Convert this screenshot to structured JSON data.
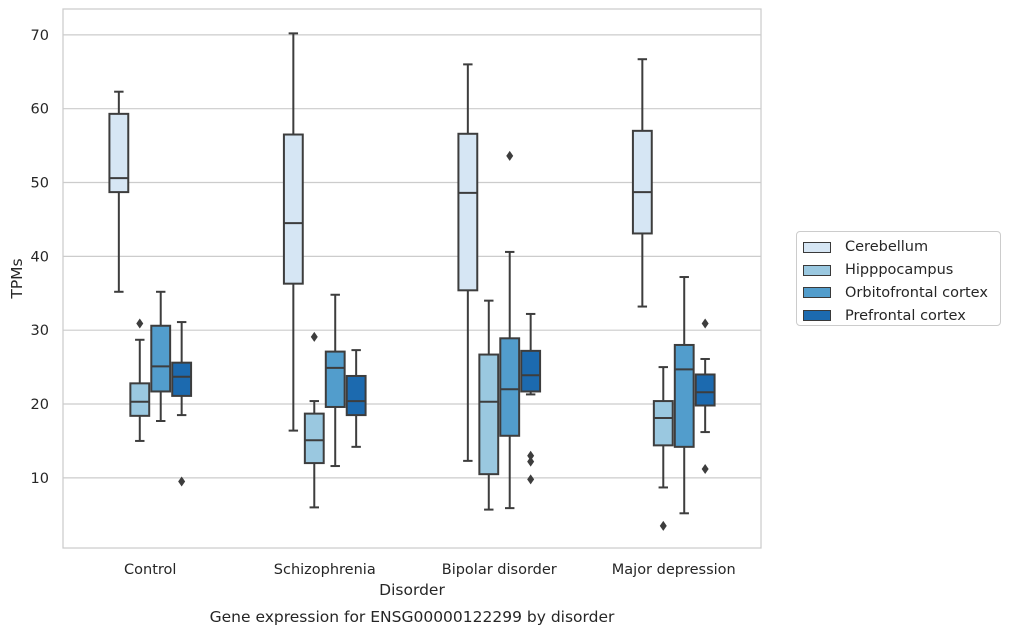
{
  "chart_data": {
    "type": "box",
    "title": "",
    "caption": "Gene expression for ENSG00000122299 by disorder",
    "xlabel": "Disorder",
    "ylabel": "TPMs",
    "ylim": [
      0.5,
      73.5
    ],
    "yticks": [
      10,
      20,
      30,
      40,
      50,
      60,
      70
    ],
    "grid": "horizontal",
    "legend_position": "right",
    "categories": [
      "Control",
      "Schizophrenia",
      "Bipolar disorder",
      "Major depression"
    ],
    "series": [
      {
        "name": "Cerebellum",
        "color": "#d6e6f4",
        "boxes": [
          {
            "whislo": 35.2,
            "q1": 48.7,
            "med": 50.6,
            "q3": 59.3,
            "whishi": 62.3,
            "fliers": []
          },
          {
            "whislo": 16.4,
            "q1": 36.3,
            "med": 44.5,
            "q3": 56.5,
            "whishi": 70.2,
            "fliers": []
          },
          {
            "whislo": 12.3,
            "q1": 35.4,
            "med": 48.6,
            "q3": 56.6,
            "whishi": 66.0,
            "fliers": []
          },
          {
            "whislo": 33.2,
            "q1": 43.1,
            "med": 48.7,
            "q3": 57.0,
            "whishi": 66.7,
            "fliers": []
          }
        ]
      },
      {
        "name": "Hipppocampus",
        "color": "#9ac8e0",
        "boxes": [
          {
            "whislo": 15.0,
            "q1": 18.4,
            "med": 20.3,
            "q3": 22.8,
            "whishi": 28.7,
            "fliers": [
              30.9
            ]
          },
          {
            "whislo": 6.0,
            "q1": 12.0,
            "med": 15.1,
            "q3": 18.7,
            "whishi": 20.4,
            "fliers": [
              29.1
            ]
          },
          {
            "whislo": 5.7,
            "q1": 10.5,
            "med": 20.3,
            "q3": 26.7,
            "whishi": 34.0,
            "fliers": []
          },
          {
            "whislo": 8.7,
            "q1": 14.4,
            "med": 18.1,
            "q3": 20.4,
            "whishi": 25.0,
            "fliers": [
              3.5
            ]
          }
        ]
      },
      {
        "name": "Orbitofrontal cortex",
        "color": "#529dcc",
        "boxes": [
          {
            "whislo": 17.7,
            "q1": 21.7,
            "med": 25.1,
            "q3": 30.6,
            "whishi": 35.2,
            "fliers": []
          },
          {
            "whislo": 11.6,
            "q1": 19.6,
            "med": 24.9,
            "q3": 27.1,
            "whishi": 34.8,
            "fliers": []
          },
          {
            "whislo": 5.9,
            "q1": 15.7,
            "med": 22.0,
            "q3": 28.9,
            "whishi": 40.6,
            "fliers": [
              53.6
            ]
          },
          {
            "whislo": 5.2,
            "q1": 14.2,
            "med": 24.7,
            "q3": 28.0,
            "whishi": 37.2,
            "fliers": []
          }
        ]
      },
      {
        "name": "Prefrontal cortex",
        "color": "#1c6aaf",
        "boxes": [
          {
            "whislo": 18.5,
            "q1": 21.1,
            "med": 23.7,
            "q3": 25.6,
            "whishi": 31.1,
            "fliers": [
              9.5
            ]
          },
          {
            "whislo": 14.2,
            "q1": 18.5,
            "med": 20.4,
            "q3": 23.8,
            "whishi": 27.3,
            "fliers": []
          },
          {
            "whislo": 21.3,
            "q1": 21.7,
            "med": 23.9,
            "q3": 27.2,
            "whishi": 32.2,
            "fliers": [
              13.0,
              12.2,
              9.8
            ]
          },
          {
            "whislo": 16.2,
            "q1": 19.8,
            "med": 21.6,
            "q3": 24.0,
            "whishi": 26.1,
            "fliers": [
              30.9,
              11.2
            ]
          }
        ]
      }
    ]
  }
}
